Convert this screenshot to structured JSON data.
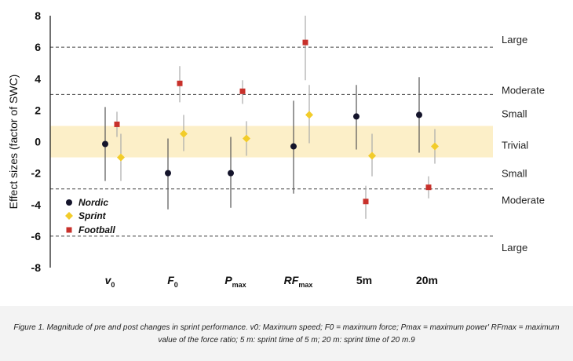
{
  "chart_data": {
    "type": "scatter",
    "ylabel": "Effect sizes (factor of SWC)",
    "ylim": [
      -8,
      8
    ],
    "yticks": [
      8,
      6,
      4,
      2,
      0,
      -2,
      -4,
      -6,
      -8
    ],
    "categories": [
      {
        "main": "v",
        "sub": "0",
        "italic": true
      },
      {
        "main": "F",
        "sub": "0",
        "italic": true
      },
      {
        "main": "P",
        "sub": "max",
        "italic": true
      },
      {
        "main": "RF",
        "sub": "max",
        "italic": true
      },
      {
        "main": "5m",
        "sub": "",
        "italic": false
      },
      {
        "main": "20m",
        "sub": "",
        "italic": false
      }
    ],
    "thresholds": [
      6,
      3,
      -3,
      -6
    ],
    "trivial_band": [
      -1,
      1
    ],
    "bands": [
      {
        "label": "Large",
        "y": 6.5
      },
      {
        "label": "Moderate",
        "y": 3.3
      },
      {
        "label": "Small",
        "y": 1.8
      },
      {
        "label": "Trivial",
        "y": -0.2
      },
      {
        "label": "Small",
        "y": -2.0
      },
      {
        "label": "Moderate",
        "y": -3.7
      },
      {
        "label": "Large",
        "y": -6.7
      }
    ],
    "series": [
      {
        "name": "Nordic",
        "marker": "circle",
        "color": "#14142b",
        "values": [
          -0.15,
          -2.0,
          -2.0,
          -0.3,
          1.6,
          1.7
        ],
        "lower": [
          -2.5,
          -4.3,
          -4.2,
          -3.3,
          -0.5,
          -0.7
        ],
        "upper": [
          2.2,
          0.2,
          0.3,
          2.6,
          3.6,
          4.1
        ]
      },
      {
        "name": "Sprint",
        "marker": "diamond",
        "color": "#f2cc2a",
        "values": [
          -1.0,
          0.5,
          0.2,
          1.7,
          -0.9,
          -0.3
        ],
        "lower": [
          -2.5,
          -0.6,
          -0.9,
          -0.1,
          -2.2,
          -1.4
        ],
        "upper": [
          0.5,
          1.7,
          1.3,
          3.6,
          0.5,
          0.8
        ]
      },
      {
        "name": "Football",
        "marker": "square",
        "color": "#c8312b",
        "values": [
          1.1,
          3.7,
          3.2,
          6.3,
          -3.8,
          -2.9
        ],
        "lower": [
          0.3,
          2.5,
          2.4,
          3.9,
          -4.9,
          -3.6
        ],
        "upper": [
          1.9,
          4.8,
          3.9,
          8.0,
          -2.8,
          -2.2
        ]
      }
    ]
  },
  "caption": "Figure 1. Magnitude of pre and post changes in sprint performance. v0: Maximum speed; F0 = maximum force; Pmax = maximum power' RFmax = maximum value of the force ratio; 5 m: sprint time of 5 m; 20 m: sprint time of 20 m.9"
}
